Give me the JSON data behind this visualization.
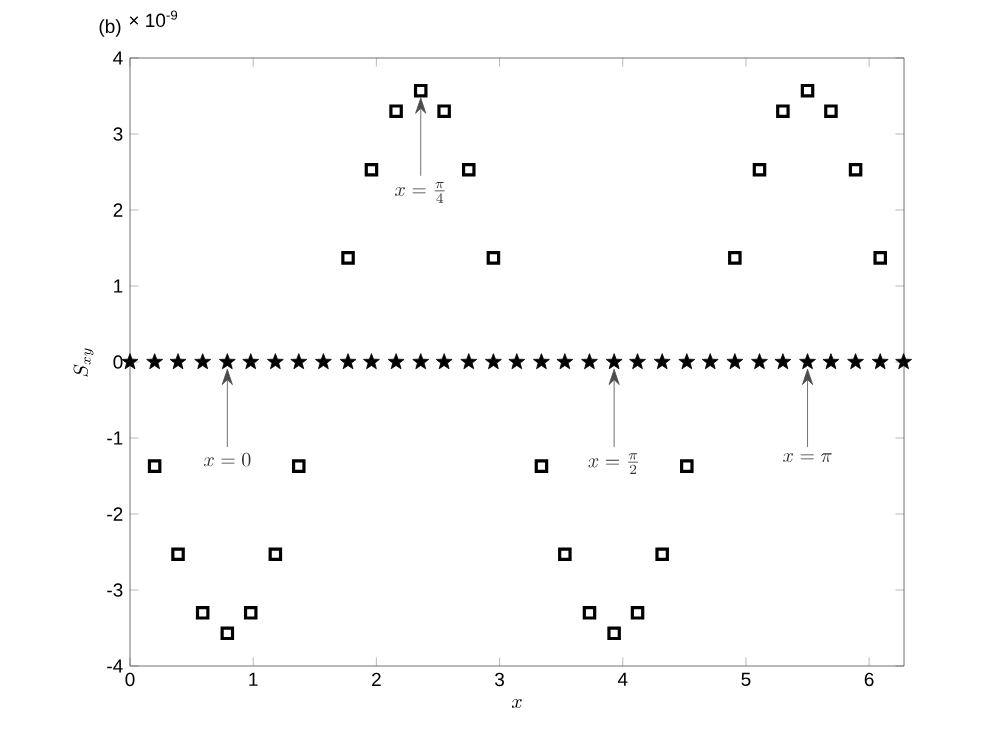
{
  "chart_data": {
    "type": "scatter",
    "xlabel": "x",
    "ylabel": "S_{xy}",
    "xlim": [
      0,
      6.2832
    ],
    "ylim": [
      -4,
      4
    ],
    "xticks": [
      0,
      1,
      2,
      3,
      4,
      5,
      6
    ],
    "yticks": [
      -4,
      -3,
      -2,
      -1,
      0,
      1,
      2,
      3,
      4
    ],
    "series": [
      {
        "color": "#000000",
        "marker": "star",
        "x": [
          0,
          0.2,
          0.39,
          0.59,
          0.79,
          0.98,
          1.18,
          1.37,
          1.57,
          1.77,
          1.96,
          2.16,
          2.36,
          2.55,
          2.75,
          2.95,
          3.14,
          3.34,
          3.53,
          3.73,
          3.93,
          4.12,
          4.32,
          4.52,
          4.71,
          4.91,
          5.11,
          5.3,
          5.5,
          5.69,
          5.89,
          6.09,
          6.28
        ],
        "values": [
          0,
          0,
          0,
          0,
          0,
          0,
          0,
          0,
          0,
          0,
          0,
          0,
          0,
          0,
          0,
          0,
          0,
          0,
          0,
          0,
          0,
          0,
          0,
          0,
          0,
          0,
          0,
          0,
          0,
          0,
          0,
          0,
          0
        ]
      },
      {
        "color": "#000000",
        "marker": "square",
        "x": [
          0.2,
          0.39,
          0.59,
          0.79,
          0.98,
          1.18,
          1.37,
          1.77,
          1.96,
          2.16,
          2.36,
          2.55,
          2.75,
          2.95,
          3.34,
          3.53,
          3.73,
          3.93,
          4.12,
          4.32,
          4.52,
          4.91,
          5.11,
          5.3,
          5.5,
          5.69,
          5.89,
          6.09
        ],
        "values": [
          -1.37,
          -2.53,
          -3.3,
          -3.57,
          -3.3,
          -2.53,
          -1.37,
          1.37,
          2.53,
          3.3,
          3.57,
          3.3,
          2.53,
          1.37,
          -1.37,
          -2.53,
          -3.3,
          -3.57,
          -3.3,
          -2.53,
          -1.37,
          1.37,
          2.53,
          3.3,
          3.57,
          3.3,
          2.53,
          1.37
        ]
      }
    ],
    "annotations": [
      "(b)",
      "× 10$^{-9}$",
      {
        "text": "x=0",
        "x": 0.79,
        "y": 0
      },
      {
        "text": "x=\\frac{\\pi}{4}",
        "x": 2.36,
        "y": 3.57
      },
      {
        "text": "x=\\frac{\\pi}{2}",
        "x": 3.93,
        "y": 0
      },
      {
        "text": "x=\\pi",
        "x": 5.5,
        "y": 0
      }
    ]
  }
}
